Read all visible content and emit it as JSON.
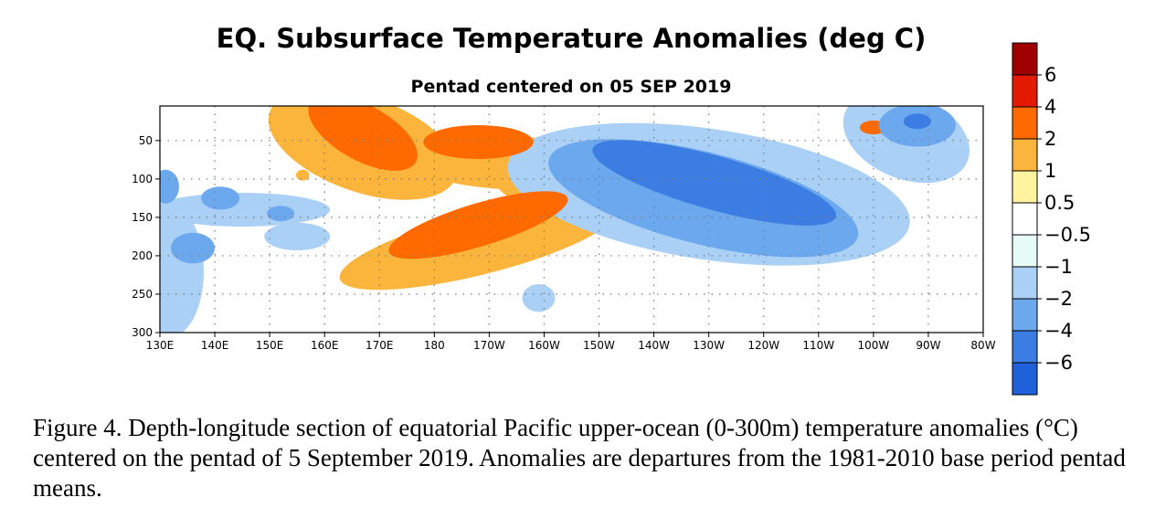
{
  "chart_data": {
    "type": "heatmap",
    "title": "EQ. Subsurface Temperature Anomalies (deg C)",
    "subtitle": "Pentad centered on 05 SEP 2019",
    "xlabel": "",
    "ylabel": "",
    "x_ticks": [
      "130E",
      "140E",
      "150E",
      "160E",
      "170E",
      "180",
      "170W",
      "160W",
      "150W",
      "140W",
      "130W",
      "120W",
      "110W",
      "100W",
      "90W",
      "80W"
    ],
    "x_tick_lon": [
      130,
      140,
      150,
      160,
      170,
      180,
      190,
      200,
      210,
      220,
      230,
      240,
      250,
      260,
      270,
      280
    ],
    "xlim": [
      130,
      280
    ],
    "y_ticks": [
      50,
      100,
      150,
      200,
      250,
      300
    ],
    "ylim": [
      5,
      300
    ],
    "y_reversed": true,
    "grid": true,
    "colorbar": {
      "labels": [
        "6",
        "4",
        "2",
        "1",
        "0.5",
        "−0.5",
        "−1",
        "−2",
        "−4",
        "−6"
      ],
      "colors": [
        "#a00000",
        "#e41a00",
        "#ff6a00",
        "#fbb43c",
        "#fff3a0",
        "#ffffff",
        "#e6fbf6",
        "#aad0f5",
        "#6ca8ee",
        "#3c7de4",
        "#2060da"
      ]
    },
    "features": [
      {
        "lon": 167,
        "depth": 40,
        "anomaly": 1.5
      },
      {
        "lon": 183,
        "depth": 160,
        "anomaly": 2.2
      },
      {
        "lon": 184,
        "depth": 158,
        "anomaly": 3.0
      },
      {
        "lon": 231,
        "depth": 105,
        "anomaly": -2.5
      },
      {
        "lon": 268,
        "depth": 25,
        "anomaly": -1.8
      },
      {
        "lon": 131,
        "depth": 110,
        "anomaly": -1.5
      },
      {
        "lon": 136,
        "depth": 190,
        "anomaly": -1.2
      },
      {
        "lon": 141,
        "depth": 125,
        "anomaly": -1.2
      },
      {
        "lon": 152,
        "depth": 145,
        "anomaly": -1.0
      },
      {
        "lon": 260,
        "depth": 35,
        "anomaly": 1.2
      }
    ]
  },
  "caption": "Figure 4. Depth-longitude section of equatorial Pacific upper-ocean (0-300m) temperature anomalies (°C) centered on the pentad of 5 September 2019. Anomalies are departures from the 1981-2010 base period pentad means."
}
